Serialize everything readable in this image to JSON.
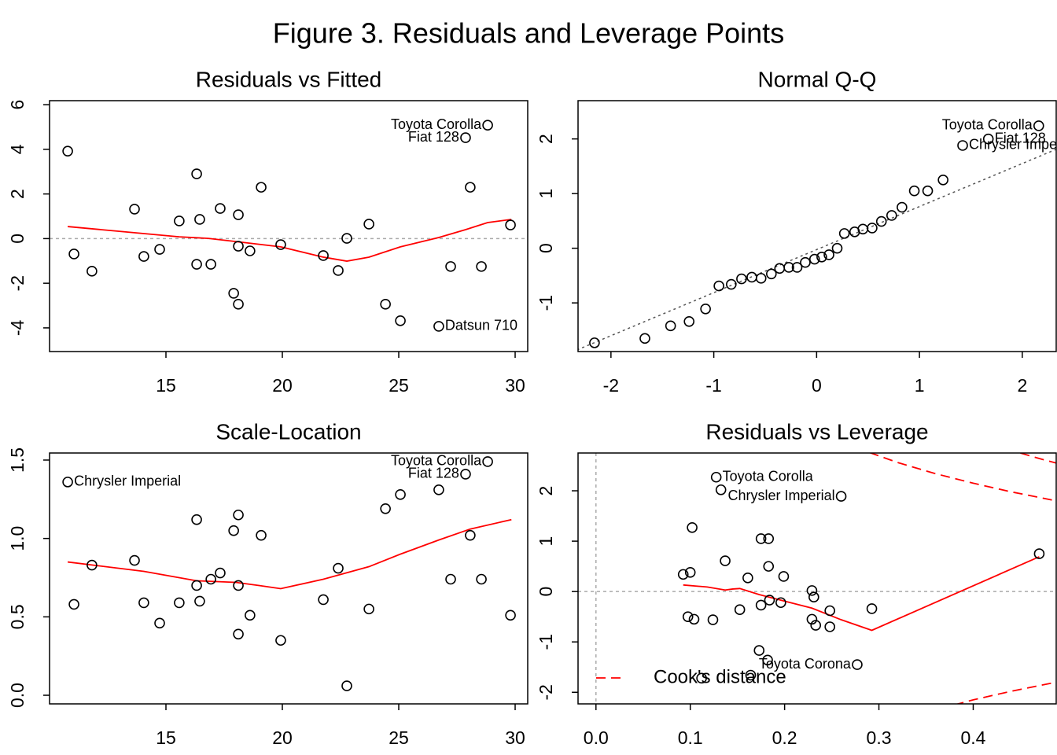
{
  "title": "Figure 3. Residuals and Leverage Points",
  "chart_data": [
    {
      "type": "scatter",
      "title": "Residuals vs Fitted",
      "x": [
        10.78,
        11.05,
        11.82,
        13.65,
        14.05,
        14.73,
        15.57,
        16.32,
        16.32,
        16.45,
        16.93,
        17.33,
        17.91,
        18.11,
        18.11,
        18.11,
        18.61,
        19.09,
        19.93,
        21.76,
        22.4,
        22.77,
        23.72,
        24.43,
        25.07,
        26.72,
        27.23,
        27.87,
        28.07,
        28.55,
        28.82,
        29.8
      ],
      "values": [
        3.92,
        -0.69,
        -1.46,
        1.32,
        -0.8,
        -0.48,
        0.79,
        2.9,
        -1.15,
        0.86,
        -1.15,
        1.35,
        -2.45,
        -2.94,
        1.07,
        -0.34,
        -0.55,
        2.3,
        -0.27,
        -0.76,
        -1.43,
        0.01,
        0.65,
        -2.94,
        -3.68,
        -3.93,
        -1.25,
        4.52,
        2.3,
        -1.25,
        5.08,
        0.61
      ],
      "point_labels": [
        null,
        null,
        null,
        null,
        null,
        null,
        null,
        null,
        null,
        null,
        null,
        null,
        null,
        null,
        null,
        null,
        null,
        null,
        null,
        null,
        null,
        null,
        null,
        null,
        null,
        "Datsun 710",
        null,
        "Fiat 128",
        null,
        null,
        "Toyota Corolla",
        null
      ],
      "smooth": {
        "color": "#ff0000",
        "x": [
          10.78,
          12.95,
          15.57,
          16.82,
          18.0,
          19.93,
          21.76,
          22.77,
          23.72,
          25.07,
          26.72,
          27.87,
          28.82,
          29.84
        ],
        "values": [
          0.54,
          0.33,
          0.08,
          0.01,
          -0.13,
          -0.37,
          -0.83,
          -1.01,
          -0.83,
          -0.37,
          0.05,
          0.4,
          0.72,
          0.86
        ]
      },
      "hlines": [
        0
      ],
      "xlim": [
        10.0,
        30.54
      ],
      "ylim": [
        -5.06,
        6.18
      ],
      "xticks": [
        15,
        20,
        25,
        30
      ],
      "yticks": [
        -4,
        -2,
        0,
        2,
        4,
        6
      ]
    },
    {
      "type": "scatter",
      "title": "Normal Q-Q",
      "x": [
        -2.16,
        -1.67,
        -1.42,
        -1.24,
        -1.08,
        -0.95,
        -0.83,
        -0.73,
        -0.63,
        -0.54,
        -0.44,
        -0.36,
        -0.27,
        -0.19,
        -0.11,
        -0.02,
        0.05,
        0.12,
        0.2,
        0.27,
        0.37,
        0.45,
        0.54,
        0.63,
        0.73,
        0.83,
        0.95,
        1.08,
        1.23,
        1.42,
        1.67,
        2.16
      ],
      "values": [
        -1.73,
        -1.65,
        -1.42,
        -1.34,
        -1.11,
        -0.69,
        -0.66,
        -0.56,
        -0.53,
        -0.55,
        -0.47,
        -0.37,
        -0.35,
        -0.35,
        -0.26,
        -0.2,
        -0.16,
        -0.12,
        0.0,
        0.27,
        0.3,
        0.35,
        0.37,
        0.49,
        0.6,
        0.75,
        1.05,
        1.05,
        1.25,
        1.88,
        2.0,
        2.24
      ],
      "point_labels": [
        null,
        null,
        null,
        null,
        null,
        null,
        null,
        null,
        null,
        null,
        null,
        null,
        null,
        null,
        null,
        null,
        null,
        null,
        null,
        null,
        null,
        null,
        null,
        null,
        null,
        null,
        null,
        null,
        null,
        "Chrysler Imperial",
        "Fiat 128",
        "Toyota Corolla"
      ],
      "refline": {
        "color": "#555555",
        "x": [
          -2.33,
          2.33
        ],
        "values": [
          -1.86,
          1.81
        ]
      },
      "xlim": [
        -2.32,
        2.33
      ],
      "ylim": [
        -1.89,
        2.7
      ],
      "xticks": [
        -2,
        -1,
        0,
        1,
        2
      ],
      "yticks": [
        -1,
        0,
        1,
        2
      ]
    },
    {
      "type": "scatter",
      "title": "Scale-Location",
      "x": [
        10.78,
        11.05,
        11.82,
        13.65,
        14.05,
        14.73,
        15.57,
        16.32,
        16.32,
        16.45,
        16.93,
        17.33,
        17.91,
        18.11,
        18.11,
        18.11,
        18.61,
        19.09,
        19.93,
        21.76,
        22.4,
        22.77,
        23.72,
        24.43,
        25.07,
        26.72,
        27.23,
        27.87,
        28.07,
        28.55,
        28.82,
        29.8
      ],
      "values": [
        1.36,
        0.58,
        0.83,
        0.86,
        0.59,
        0.46,
        0.59,
        1.12,
        0.7,
        0.6,
        0.74,
        0.78,
        1.05,
        1.15,
        0.7,
        0.39,
        0.51,
        1.02,
        0.35,
        0.61,
        0.81,
        0.06,
        0.55,
        1.19,
        1.28,
        1.31,
        0.74,
        1.41,
        1.02,
        0.74,
        1.49,
        0.51
      ],
      "point_labels": [
        "Chrysler Imperial",
        null,
        null,
        null,
        null,
        null,
        null,
        null,
        null,
        null,
        null,
        null,
        null,
        null,
        null,
        null,
        null,
        null,
        null,
        null,
        null,
        null,
        null,
        null,
        null,
        null,
        null,
        "Fiat 128",
        null,
        null,
        "Toyota Corolla",
        null
      ],
      "smooth": {
        "color": "#ff0000",
        "x": [
          10.78,
          14.05,
          16.32,
          18.0,
          19.0,
          19.93,
          21.76,
          23.72,
          25.07,
          26.72,
          28.07,
          29.84
        ],
        "values": [
          0.85,
          0.79,
          0.73,
          0.72,
          0.7,
          0.68,
          0.74,
          0.82,
          0.9,
          0.99,
          1.06,
          1.12
        ]
      },
      "xlim": [
        10.0,
        30.54
      ],
      "ylim": [
        -0.055,
        1.545
      ],
      "xticks": [
        15,
        20,
        25,
        30
      ],
      "yticks": [
        {
          "value": 0,
          "label": "0.0"
        },
        {
          "value": 0.5,
          "label": "0.5"
        },
        {
          "value": 1,
          "label": "1.0"
        },
        {
          "value": 1.5,
          "label": "1.5"
        }
      ]
    },
    {
      "type": "scatter",
      "title": "Residuals vs Leverage",
      "x": [
        0.0925,
        0.1,
        0.0975,
        0.104,
        0.102,
        0.124,
        0.137,
        0.1325,
        0.1275,
        0.1525,
        0.161,
        0.173,
        0.175,
        0.175,
        0.183,
        0.183,
        0.184,
        0.182,
        0.196,
        0.199,
        0.229,
        0.231,
        0.229,
        0.233,
        0.248,
        0.248,
        0.26,
        0.2925,
        0.277,
        0.47,
        0.112,
        0.164
      ],
      "values": [
        0.34,
        0.38,
        -0.5,
        -0.55,
        1.27,
        -0.56,
        0.61,
        2.02,
        2.27,
        -0.36,
        0.27,
        -1.17,
        -0.27,
        1.05,
        1.05,
        0.5,
        -0.17,
        -1.36,
        -0.22,
        0.3,
        0.02,
        -0.11,
        -0.55,
        -0.67,
        -0.38,
        -0.7,
        1.89,
        -0.34,
        -1.45,
        0.75,
        -1.72,
        -1.66
      ],
      "point_labels": [
        null,
        null,
        null,
        null,
        null,
        null,
        null,
        null,
        "Toyota Corolla",
        null,
        null,
        null,
        null,
        null,
        null,
        null,
        null,
        null,
        null,
        null,
        null,
        null,
        null,
        null,
        null,
        null,
        "Chrysler Imperial",
        null,
        "Toyota Corona",
        null,
        null,
        null
      ],
      "smooth": {
        "color": "#ff0000",
        "x": [
          0.0925,
          0.118,
          0.137,
          0.145,
          0.1525,
          0.173,
          0.2,
          0.229,
          0.26,
          0.2925,
          0.47
        ],
        "values": [
          0.13,
          0.09,
          0.03,
          0.05,
          0.06,
          -0.06,
          -0.19,
          -0.33,
          -0.56,
          -0.77,
          0.69
        ]
      },
      "cooks": {
        "name": "Cook's distance",
        "color": "#ff0000",
        "legend": "bottomleft",
        "curves": [
          {
            "x": [
              0.29,
              0.32,
              0.36,
              0.4,
              0.44,
              0.488
            ],
            "values": [
              2.76,
              2.56,
              2.34,
              2.15,
              1.98,
              1.8
            ]
          },
          {
            "x": [
              0.38,
              0.4,
              0.44,
              0.488
            ],
            "values": [
              -2.25,
              -2.15,
              -1.98,
              -1.8
            ]
          },
          {
            "x": [
              0.45,
              0.47,
              0.488
            ],
            "values": [
              2.75,
              2.64,
              2.55
            ]
          }
        ]
      },
      "hlines": [
        0
      ],
      "vlines": [
        0
      ],
      "xlim": [
        -0.019,
        0.488
      ],
      "ylim": [
        -2.23,
        2.75
      ],
      "xticks": [
        {
          "value": 0,
          "label": "0.0"
        },
        0.1,
        0.2,
        0.3,
        0.4
      ],
      "yticks": [
        -2,
        -1,
        0,
        1,
        2
      ]
    }
  ]
}
